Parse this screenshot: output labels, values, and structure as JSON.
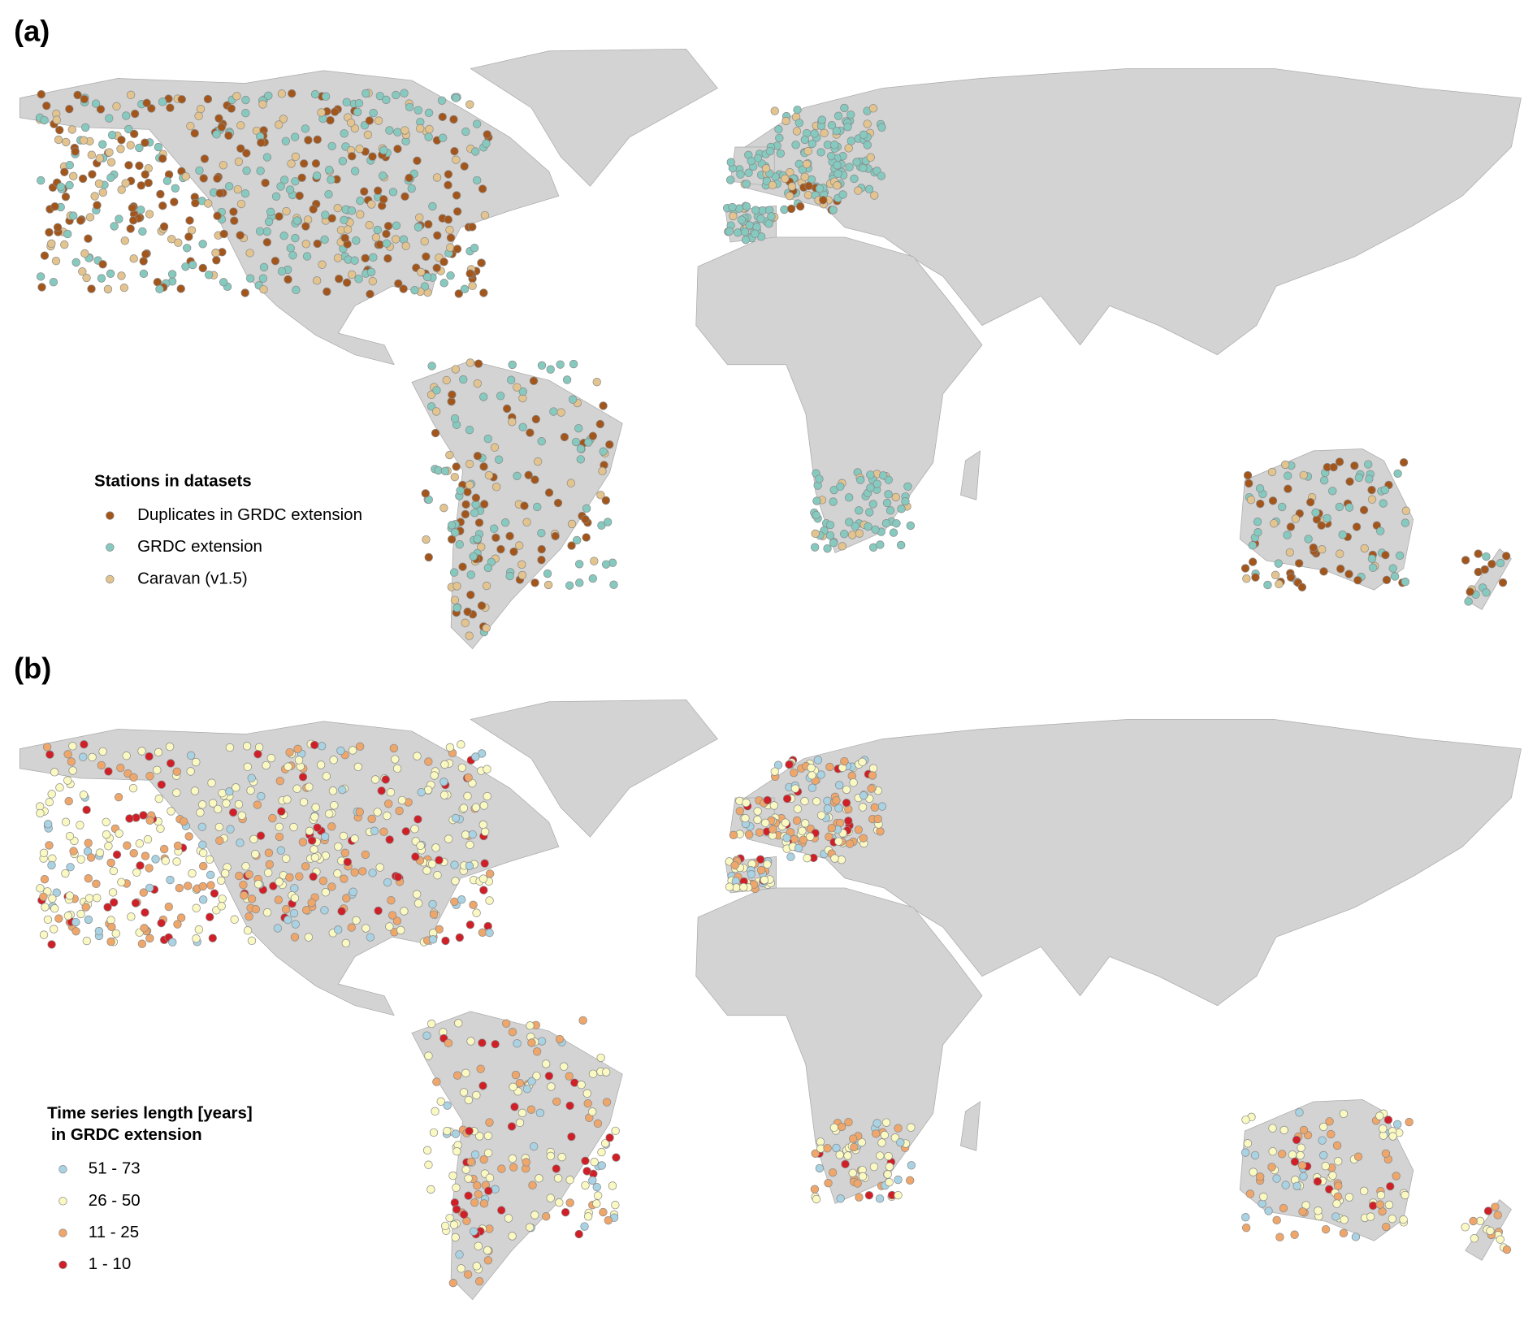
{
  "panels": [
    {
      "label": "(a)",
      "legend": {
        "title_lines": [
          "Stations in datasets"
        ],
        "entries": [
          {
            "label": "Duplicates in GRDC extension",
            "color": "#a3561c"
          },
          {
            "label": "GRDC extension",
            "color": "#86c9bf"
          },
          {
            "label": "Caravan (v1.5)",
            "color": "#e3c48e"
          }
        ]
      }
    },
    {
      "label": "(b)",
      "legend": {
        "title_lines": [
          "Time series length [years]",
          "in GRDC extension"
        ],
        "entries": [
          {
            "label": "51 - 73",
            "color": "#a9d2e3"
          },
          {
            "label": "26 - 50",
            "color": "#fbf9c2"
          },
          {
            "label": "11 - 25",
            "color": "#eea66a"
          },
          {
            "label": "1 - 10",
            "color": "#d01f27"
          }
        ]
      }
    }
  ]
}
